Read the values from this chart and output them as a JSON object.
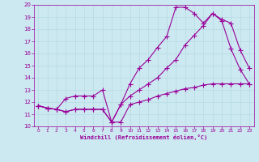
{
  "xlabel": "Windchill (Refroidissement éolien,°C)",
  "bg_color": "#cce8f0",
  "line_color": "#990099",
  "xlim": [
    -0.5,
    23.5
  ],
  "ylim": [
    10,
    20
  ],
  "yticks": [
    10,
    11,
    12,
    13,
    14,
    15,
    16,
    17,
    18,
    19,
    20
  ],
  "xticks": [
    0,
    1,
    2,
    3,
    4,
    5,
    6,
    7,
    8,
    9,
    10,
    11,
    12,
    13,
    14,
    15,
    16,
    17,
    18,
    19,
    20,
    21,
    22,
    23
  ],
  "line1_x": [
    0,
    1,
    2,
    3,
    4,
    5,
    6,
    7,
    8,
    9,
    10,
    11,
    12,
    13,
    14,
    15,
    16,
    17,
    18,
    19,
    20,
    21,
    22,
    23
  ],
  "line1_y": [
    11.7,
    11.5,
    11.4,
    11.2,
    11.4,
    11.4,
    11.4,
    11.4,
    10.35,
    10.35,
    11.8,
    12.0,
    12.2,
    12.5,
    12.7,
    12.9,
    13.1,
    13.2,
    13.4,
    13.5,
    13.5,
    13.5,
    13.5,
    13.5
  ],
  "line2_x": [
    0,
    1,
    2,
    3,
    4,
    5,
    6,
    7,
    8,
    9,
    10,
    11,
    12,
    13,
    14,
    15,
    16,
    17,
    18,
    19,
    20,
    21,
    22,
    23
  ],
  "line2_y": [
    11.7,
    11.5,
    11.4,
    11.2,
    11.4,
    11.4,
    11.4,
    11.4,
    10.35,
    11.8,
    12.5,
    13.0,
    13.5,
    14.0,
    14.8,
    15.5,
    16.7,
    17.5,
    18.3,
    19.3,
    18.8,
    18.5,
    16.3,
    14.8
  ],
  "line3_x": [
    0,
    1,
    2,
    3,
    4,
    5,
    6,
    7,
    8,
    9,
    10,
    11,
    12,
    13,
    14,
    15,
    16,
    17,
    18,
    19,
    20,
    21,
    22,
    23
  ],
  "line3_y": [
    11.7,
    11.5,
    11.4,
    12.3,
    12.5,
    12.5,
    12.5,
    13.0,
    10.35,
    11.8,
    13.5,
    14.8,
    15.5,
    16.5,
    17.4,
    19.8,
    19.8,
    19.3,
    18.5,
    19.3,
    18.7,
    16.4,
    14.7,
    13.5
  ]
}
